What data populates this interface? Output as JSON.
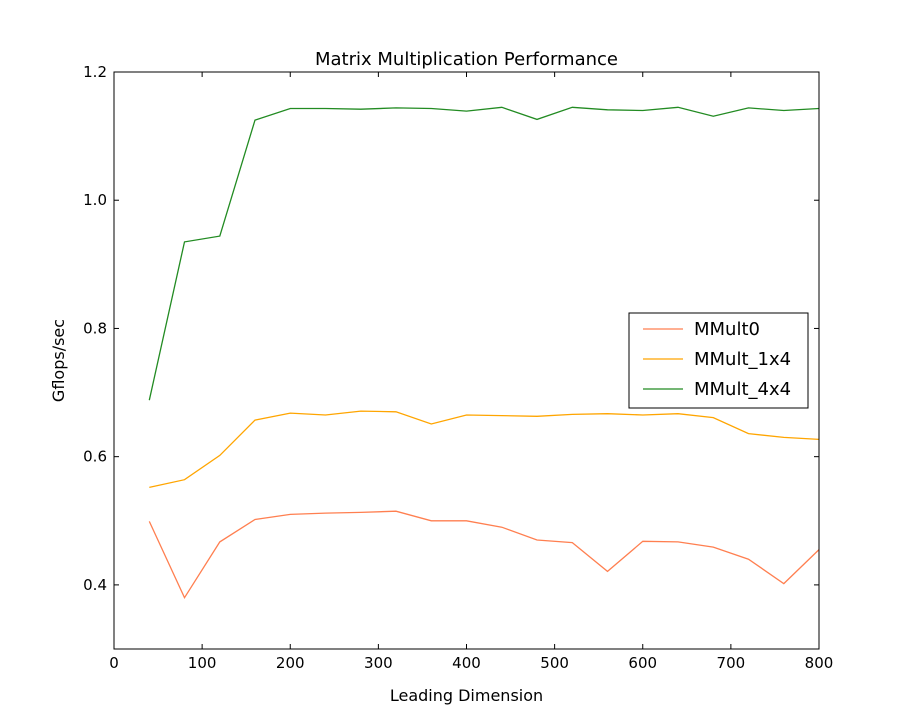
{
  "chart_data": {
    "type": "line",
    "title": "Matrix Multiplication Performance",
    "xlabel": "Leading Dimension",
    "ylabel": "Gflops/sec",
    "xlim": [
      0,
      800
    ],
    "ylim": [
      0.3,
      1.2
    ],
    "xticks": [
      0,
      100,
      200,
      300,
      400,
      500,
      600,
      700,
      800
    ],
    "xtick_labels": [
      "0",
      "100",
      "200",
      "300",
      "400",
      "500",
      "600",
      "700",
      "800"
    ],
    "yticks": [
      0.4,
      0.6,
      0.8,
      1.0,
      1.2
    ],
    "ytick_labels": [
      "0.4",
      "0.6",
      "0.8",
      "1.0",
      "1.2"
    ],
    "grid": false,
    "legend_position": "center-right",
    "x": [
      40,
      80,
      120,
      160,
      200,
      240,
      280,
      320,
      360,
      400,
      440,
      480,
      520,
      560,
      600,
      640,
      680,
      720,
      760,
      800
    ],
    "series": [
      {
        "name": "MMult0",
        "color": "#ff7f50",
        "values": [
          0.499,
          0.38,
          0.467,
          0.502,
          0.51,
          0.512,
          0.513,
          0.515,
          0.5,
          0.5,
          0.49,
          0.47,
          0.466,
          0.421,
          0.468,
          0.467,
          0.459,
          0.44,
          0.402,
          0.455
        ]
      },
      {
        "name": "MMult_1x4",
        "color": "#ffa500",
        "values": [
          0.552,
          0.564,
          0.602,
          0.657,
          0.668,
          0.665,
          0.671,
          0.67,
          0.651,
          0.665,
          0.664,
          0.663,
          0.666,
          0.667,
          0.665,
          0.667,
          0.661,
          0.636,
          0.63,
          0.627
        ]
      },
      {
        "name": "MMult_4x4",
        "color": "#228b22",
        "values": [
          0.688,
          0.935,
          0.944,
          1.125,
          1.143,
          1.143,
          1.142,
          1.144,
          1.143,
          1.139,
          1.145,
          1.126,
          1.145,
          1.141,
          1.14,
          1.145,
          1.131,
          1.144,
          1.14,
          1.143
        ]
      }
    ]
  }
}
